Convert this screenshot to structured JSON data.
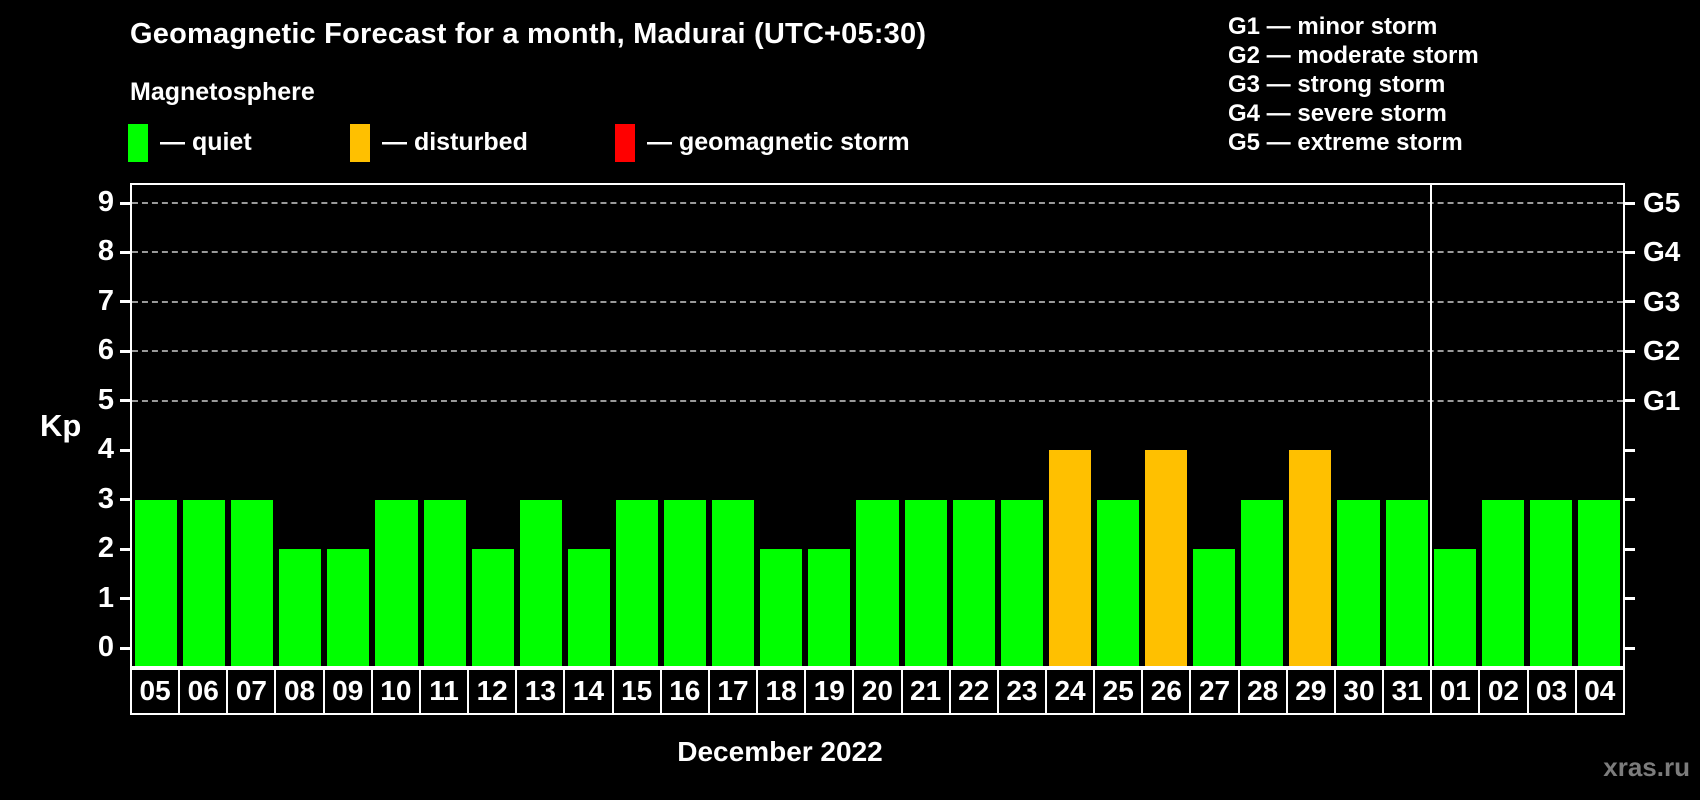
{
  "title": "Geomagnetic Forecast for a month, Madurai (UTC+05:30)",
  "subtitle": "Magnetosphere",
  "legend": {
    "quiet": {
      "label": "— quiet",
      "color": "#00ff00"
    },
    "disturbed": {
      "label": "— disturbed",
      "color": "#ffc000"
    },
    "storm": {
      "label": "— geomagnetic storm",
      "color": "#ff0000"
    }
  },
  "g_legend": [
    "G1 — minor storm",
    "G2 — moderate storm",
    "G3 — strong storm",
    "G4 — severe storm",
    "G5 — extreme storm"
  ],
  "watermark": "xras.ru",
  "chart_data": {
    "type": "bar",
    "title": "Geomagnetic Forecast for a month, Madurai (UTC+05:30)",
    "ylabel": "Kp",
    "xlabel": "December 2022",
    "month_label": "December 2022",
    "ylim": [
      0,
      9
    ],
    "y_ticks": [
      0,
      1,
      2,
      3,
      4,
      5,
      6,
      7,
      8,
      9
    ],
    "gridlines_at_kp": [
      5,
      6,
      7,
      8,
      9
    ],
    "grid": "dashed, only at G-storm levels 5-9",
    "legend_position": "top-left",
    "right_axis": [
      {
        "kp": 5,
        "label": "G1"
      },
      {
        "kp": 6,
        "label": "G2"
      },
      {
        "kp": 7,
        "label": "G3"
      },
      {
        "kp": 8,
        "label": "G4"
      },
      {
        "kp": 9,
        "label": "G5"
      }
    ],
    "categories": [
      "05",
      "06",
      "07",
      "08",
      "09",
      "10",
      "11",
      "12",
      "13",
      "14",
      "15",
      "16",
      "17",
      "18",
      "19",
      "20",
      "21",
      "22",
      "23",
      "24",
      "25",
      "26",
      "27",
      "28",
      "29",
      "30",
      "31",
      "01",
      "02",
      "03",
      "04"
    ],
    "values": [
      3,
      3,
      3,
      2,
      2,
      3,
      3,
      2,
      3,
      2,
      3,
      3,
      3,
      2,
      2,
      3,
      3,
      3,
      3,
      4,
      3,
      4,
      2,
      3,
      4,
      3,
      3,
      2,
      3,
      3,
      3
    ],
    "statuses": [
      "quiet",
      "quiet",
      "quiet",
      "quiet",
      "quiet",
      "quiet",
      "quiet",
      "quiet",
      "quiet",
      "quiet",
      "quiet",
      "quiet",
      "quiet",
      "quiet",
      "quiet",
      "quiet",
      "quiet",
      "quiet",
      "quiet",
      "disturbed",
      "quiet",
      "disturbed",
      "quiet",
      "quiet",
      "disturbed",
      "quiet",
      "quiet",
      "quiet",
      "quiet",
      "quiet",
      "quiet"
    ],
    "month_separator_index": 27
  }
}
